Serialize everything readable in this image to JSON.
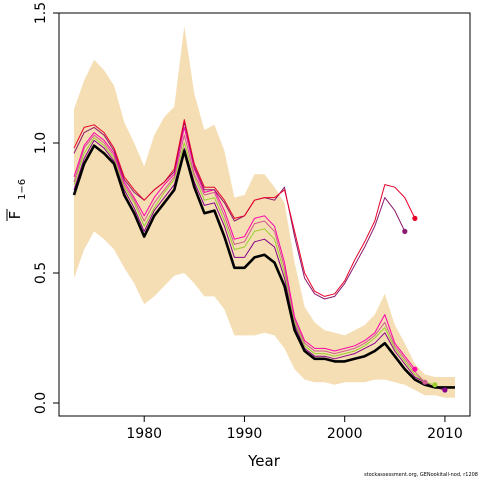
{
  "chart_data": {
    "type": "line",
    "xlabel": "Year",
    "ylabel_main": "F",
    "ylabel_sub": "1−6",
    "xlim": [
      1971.5,
      2012.5
    ],
    "ylim": [
      -0.05,
      1.5
    ],
    "x_ticks": [
      1980,
      1990,
      2000,
      2010
    ],
    "x_tick_labels": [
      "1980",
      "1990",
      "2000",
      "2010"
    ],
    "y_ticks": [
      0.0,
      0.5,
      1.0,
      1.5
    ],
    "y_tick_labels": [
      "0.0",
      "0.5",
      "1.0",
      "1.5"
    ],
    "footer": "stockassessment.org, GENookitall-nod, r1208",
    "band": {
      "color": "#f5deb3",
      "years": [
        1973,
        1974,
        1975,
        1976,
        1977,
        1978,
        1979,
        1980,
        1981,
        1982,
        1983,
        1984,
        1985,
        1986,
        1987,
        1988,
        1989,
        1990,
        1991,
        1992,
        1993,
        1994,
        1995,
        1996,
        1997,
        1998,
        1999,
        2000,
        2001,
        2002,
        2003,
        2004,
        2005,
        2006,
        2007,
        2008,
        2009,
        2010,
        2011
      ],
      "upper": [
        1.13,
        1.24,
        1.32,
        1.28,
        1.22,
        1.08,
        1.0,
        0.91,
        1.03,
        1.1,
        1.14,
        1.45,
        1.19,
        1.05,
        1.07,
        0.97,
        0.79,
        0.8,
        0.88,
        0.88,
        0.83,
        0.77,
        0.54,
        0.37,
        0.31,
        0.28,
        0.27,
        0.26,
        0.28,
        0.3,
        0.34,
        0.42,
        0.3,
        0.23,
        0.15,
        0.11,
        0.1,
        0.1,
        0.1
      ],
      "lower": [
        0.48,
        0.59,
        0.66,
        0.63,
        0.59,
        0.52,
        0.46,
        0.38,
        0.41,
        0.45,
        0.49,
        0.5,
        0.46,
        0.41,
        0.41,
        0.36,
        0.26,
        0.26,
        0.26,
        0.27,
        0.26,
        0.21,
        0.13,
        0.09,
        0.08,
        0.08,
        0.07,
        0.08,
        0.08,
        0.08,
        0.09,
        0.09,
        0.08,
        0.07,
        0.05,
        0.03,
        0.03,
        0.02,
        0.02
      ]
    },
    "series": [
      {
        "role": "final",
        "color": "#000000",
        "width": 2.6,
        "x": [
          1973,
          1974,
          1975,
          1976,
          1977,
          1978,
          1979,
          1980,
          1981,
          1982,
          1983,
          1984,
          1985,
          1986,
          1987,
          1988,
          1989,
          1990,
          1991,
          1992,
          1993,
          1994,
          1995,
          1996,
          1997,
          1998,
          1999,
          2000,
          2001,
          2002,
          2003,
          2004,
          2005,
          2006,
          2007,
          2008,
          2009,
          2010,
          2011
        ],
        "y": [
          0.8,
          0.92,
          0.99,
          0.96,
          0.92,
          0.8,
          0.73,
          0.64,
          0.72,
          0.77,
          0.82,
          0.97,
          0.83,
          0.73,
          0.74,
          0.64,
          0.52,
          0.52,
          0.56,
          0.57,
          0.54,
          0.45,
          0.28,
          0.2,
          0.17,
          0.17,
          0.16,
          0.16,
          0.17,
          0.18,
          0.2,
          0.23,
          0.18,
          0.13,
          0.09,
          0.07,
          0.06,
          0.06,
          0.06
        ],
        "end_point": null
      },
      {
        "role": "retro",
        "color": "#8b008b",
        "width": 1,
        "x": [
          1973,
          1974,
          1975,
          1976,
          1977,
          1978,
          1979,
          1980,
          1981,
          1982,
          1983,
          1984,
          1985,
          1986,
          1987,
          1988,
          1989,
          1990,
          1991,
          1992,
          1993,
          1994,
          1995,
          1996,
          1997,
          1998,
          1999,
          2000,
          2001,
          2002,
          2003,
          2004,
          2005,
          2006,
          2007,
          2008,
          2009,
          2010
        ],
        "y": [
          0.82,
          0.94,
          1.01,
          0.98,
          0.93,
          0.82,
          0.75,
          0.66,
          0.74,
          0.79,
          0.84,
          0.98,
          0.85,
          0.76,
          0.77,
          0.68,
          0.56,
          0.56,
          0.62,
          0.63,
          0.6,
          0.48,
          0.3,
          0.21,
          0.18,
          0.18,
          0.17,
          0.18,
          0.19,
          0.21,
          0.23,
          0.27,
          0.2,
          0.15,
          0.1,
          0.08,
          0.06,
          0.05
        ],
        "end_point": {
          "x": 2010,
          "y": 0.05
        }
      },
      {
        "role": "retro",
        "color": "#9acd32",
        "width": 1,
        "x": [
          1973,
          1974,
          1975,
          1976,
          1977,
          1978,
          1979,
          1980,
          1981,
          1982,
          1983,
          1984,
          1985,
          1986,
          1987,
          1988,
          1989,
          1990,
          1991,
          1992,
          1993,
          1994,
          1995,
          1996,
          1997,
          1998,
          1999,
          2000,
          2001,
          2002,
          2003,
          2004,
          2005,
          2006,
          2007,
          2008,
          2009
        ],
        "y": [
          0.84,
          0.96,
          1.02,
          0.99,
          0.94,
          0.83,
          0.77,
          0.68,
          0.75,
          0.81,
          0.86,
          1.0,
          0.87,
          0.78,
          0.79,
          0.7,
          0.59,
          0.6,
          0.66,
          0.67,
          0.63,
          0.5,
          0.31,
          0.22,
          0.19,
          0.19,
          0.18,
          0.19,
          0.2,
          0.22,
          0.25,
          0.29,
          0.21,
          0.16,
          0.11,
          0.08,
          0.07
        ],
        "end_point": {
          "x": 2009,
          "y": 0.07
        }
      },
      {
        "role": "retro",
        "color": "#d05a8c",
        "width": 1,
        "x": [
          1973,
          1974,
          1975,
          1976,
          1977,
          1978,
          1979,
          1980,
          1981,
          1982,
          1983,
          1984,
          1985,
          1986,
          1987,
          1988,
          1989,
          1990,
          1991,
          1992,
          1993,
          1994,
          1995,
          1996,
          1997,
          1998,
          1999,
          2000,
          2001,
          2002,
          2003,
          2004,
          2005,
          2006,
          2007,
          2008
        ],
        "y": [
          0.85,
          0.98,
          1.03,
          1.0,
          0.95,
          0.84,
          0.78,
          0.7,
          0.77,
          0.82,
          0.87,
          1.03,
          0.88,
          0.8,
          0.81,
          0.72,
          0.61,
          0.62,
          0.69,
          0.7,
          0.66,
          0.52,
          0.32,
          0.23,
          0.2,
          0.2,
          0.19,
          0.2,
          0.21,
          0.23,
          0.26,
          0.31,
          0.22,
          0.17,
          0.12,
          0.08
        ],
        "end_point": {
          "x": 2008,
          "y": 0.08
        }
      },
      {
        "role": "retro",
        "color": "#ff00aa",
        "width": 1,
        "x": [
          1973,
          1974,
          1975,
          1976,
          1977,
          1978,
          1979,
          1980,
          1981,
          1982,
          1983,
          1984,
          1985,
          1986,
          1987,
          1988,
          1989,
          1990,
          1991,
          1992,
          1993,
          1994,
          1995,
          1996,
          1997,
          1998,
          1999,
          2000,
          2001,
          2002,
          2003,
          2004,
          2005,
          2006,
          2007
        ],
        "y": [
          0.87,
          0.99,
          1.04,
          1.01,
          0.96,
          0.85,
          0.79,
          0.72,
          0.79,
          0.84,
          0.88,
          1.06,
          0.9,
          0.81,
          0.82,
          0.74,
          0.63,
          0.64,
          0.71,
          0.72,
          0.68,
          0.54,
          0.33,
          0.24,
          0.21,
          0.21,
          0.2,
          0.21,
          0.22,
          0.24,
          0.27,
          0.34,
          0.23,
          0.18,
          0.13
        ],
        "end_point": {
          "x": 2007,
          "y": 0.13
        }
      },
      {
        "role": "retro",
        "color": "#8b1a6e",
        "width": 1,
        "x": [
          1973,
          1974,
          1975,
          1976,
          1977,
          1978,
          1979,
          1980,
          1981,
          1982,
          1983,
          1984,
          1985,
          1986,
          1987,
          1988,
          1989,
          1990,
          1991,
          1992,
          1993,
          1994,
          1995,
          1996,
          1997,
          1998,
          1999,
          2000,
          2001,
          2002,
          2003,
          2004,
          2005,
          2006
        ],
        "y": [
          0.96,
          1.04,
          1.06,
          1.03,
          0.97,
          0.86,
          0.81,
          0.78,
          0.82,
          0.85,
          0.89,
          1.08,
          0.91,
          0.82,
          0.82,
          0.77,
          0.7,
          0.72,
          0.78,
          0.79,
          0.78,
          0.83,
          0.64,
          0.48,
          0.42,
          0.4,
          0.41,
          0.46,
          0.53,
          0.6,
          0.68,
          0.79,
          0.74,
          0.66
        ],
        "end_point": {
          "x": 2006,
          "y": 0.66
        }
      },
      {
        "role": "retro",
        "color": "#e8002a",
        "width": 1,
        "x": [
          1973,
          1974,
          1975,
          1976,
          1977,
          1978,
          1979,
          1980,
          1981,
          1982,
          1983,
          1984,
          1985,
          1986,
          1987,
          1988,
          1989,
          1990,
          1991,
          1992,
          1993,
          1994,
          1995,
          1996,
          1997,
          1998,
          1999,
          2000,
          2001,
          2002,
          2003,
          2004,
          2005,
          2006,
          2007
        ],
        "y": [
          0.98,
          1.06,
          1.07,
          1.04,
          0.98,
          0.87,
          0.82,
          0.78,
          0.82,
          0.85,
          0.9,
          1.09,
          0.92,
          0.83,
          0.83,
          0.78,
          0.71,
          0.72,
          0.78,
          0.79,
          0.79,
          0.82,
          0.66,
          0.5,
          0.43,
          0.41,
          0.42,
          0.47,
          0.55,
          0.62,
          0.7,
          0.84,
          0.83,
          0.79,
          0.71
        ],
        "end_point": {
          "x": 2007,
          "y": 0.71
        }
      }
    ]
  }
}
